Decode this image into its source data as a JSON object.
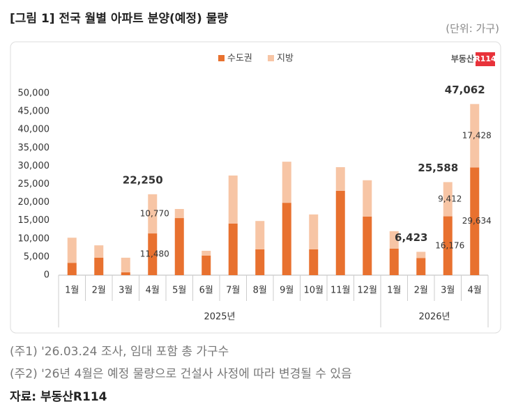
{
  "header": {
    "title": "[그림 1] 전국 월별 아파트 분양(예정) 물량",
    "unit": "(단위: 가구)"
  },
  "chart_data": {
    "type": "stacked_bar",
    "logo_text": "부동산",
    "logo_mark": "R114",
    "categories": [
      "1월",
      "2월",
      "3월",
      "4월",
      "5월",
      "6월",
      "7월",
      "8월",
      "9월",
      "10월",
      "11월",
      "12월",
      "1월",
      "2월",
      "3월",
      "4월"
    ],
    "x_groups": [
      {
        "label": "2025년",
        "span": 12
      },
      {
        "label": "2026년",
        "span": 4
      }
    ],
    "series": [
      {
        "name": "수도권",
        "color": "#e8712f",
        "values": [
          3400,
          4800,
          800,
          11480,
          15700,
          5400,
          14200,
          7100,
          19900,
          7100,
          23200,
          16100,
          7300,
          4700,
          16176,
          29634
        ],
        "value_labels": [
          null,
          null,
          null,
          "11,480",
          null,
          null,
          null,
          null,
          null,
          null,
          null,
          null,
          null,
          null,
          "16,176",
          "29,634"
        ]
      },
      {
        "name": "지방",
        "color": "#f7c5a5",
        "values": [
          6900,
          3400,
          4000,
          10770,
          2500,
          1300,
          13200,
          7800,
          11300,
          9600,
          6500,
          10000,
          4800,
          1723,
          9412,
          17428
        ],
        "value_labels": [
          null,
          null,
          null,
          "10,770",
          null,
          null,
          null,
          null,
          null,
          null,
          null,
          null,
          null,
          null,
          "9,412",
          "17,428"
        ]
      }
    ],
    "totals": [
      null,
      null,
      null,
      22250,
      null,
      null,
      null,
      null,
      null,
      null,
      null,
      null,
      null,
      6423,
      25588,
      47062
    ],
    "total_labels": [
      null,
      null,
      null,
      "22,250",
      null,
      null,
      null,
      null,
      null,
      null,
      null,
      null,
      null,
      "6,423",
      "25,588",
      "47,062"
    ],
    "ylim": [
      0,
      50000
    ],
    "yticks": [
      0,
      {
        "value": 5000,
        "label": "5,000"
      },
      {
        "value": 10000,
        "label": "10,000"
      },
      {
        "value": 15000,
        "label": "15,000"
      },
      {
        "value": 20000,
        "label": "20,000"
      },
      {
        "value": 25000,
        "label": "25,000"
      },
      {
        "value": 30000,
        "label": "30,000"
      },
      {
        "value": 35000,
        "label": "35,000"
      },
      {
        "value": 40000,
        "label": "40,000"
      },
      {
        "value": 45000,
        "label": "45,000"
      },
      {
        "value": 50000,
        "label": "50,000"
      }
    ],
    "legend": "top"
  },
  "notes": [
    "(주1) '26.03.24 조사, 임대 포함 총 가구수",
    "(주2) '26년 4월은 예정 물량으로 건설사 사정에 따라 변경될 수 있음"
  ],
  "source": "자료: 부동산R114"
}
